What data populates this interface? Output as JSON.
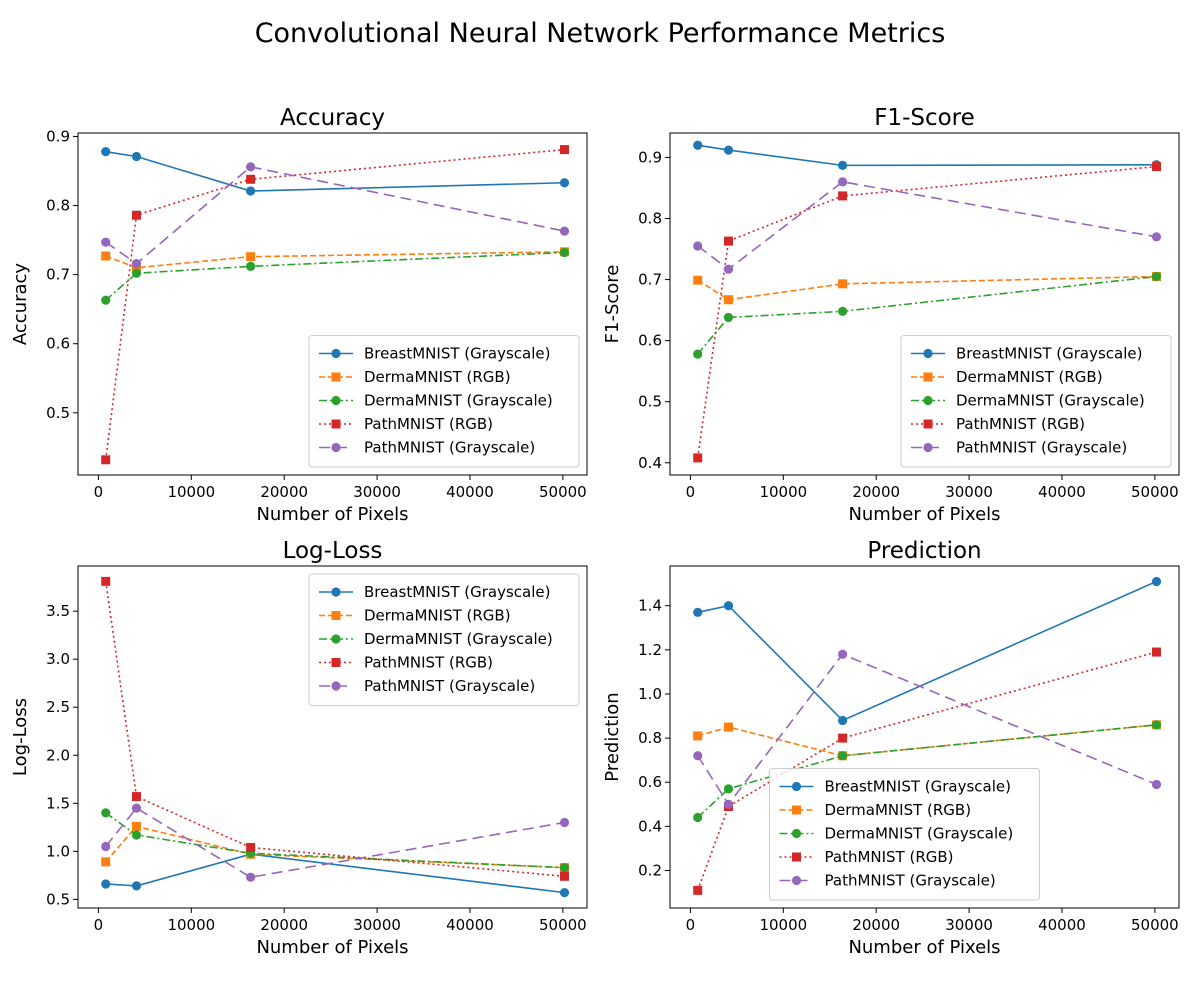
{
  "figure": {
    "title": "Convolutional Neural Network Performance Metrics"
  },
  "legend_entries": [
    "BreastMNIST (Grayscale)",
    "DermaMNIST (RGB)",
    "DermaMNIST (Grayscale)",
    "PathMNIST (RGB)",
    "PathMNIST (Grayscale)"
  ],
  "series_styles": [
    {
      "color": "#1f77b4",
      "dash": "solid",
      "marker": "circle"
    },
    {
      "color": "#ff7f0e",
      "dash": "dashed",
      "marker": "square"
    },
    {
      "color": "#2ca02c",
      "dash": "dashdot",
      "marker": "circle"
    },
    {
      "color": "#d62728",
      "dash": "dotted",
      "marker": "square"
    },
    {
      "color": "#9467bd",
      "dash": "longdash",
      "marker": "circle"
    }
  ],
  "chart_data": [
    {
      "type": "line",
      "title": "Accuracy",
      "xlabel": "Number of Pixels",
      "ylabel": "Accuracy",
      "x": [
        784,
        4096,
        16384,
        50176
      ],
      "xlim": [
        -2200,
        52600
      ],
      "ylim": [
        0.41,
        0.905
      ],
      "xticks": [
        0,
        10000,
        20000,
        30000,
        40000,
        50000
      ],
      "yticks": [
        0.5,
        0.6,
        0.7,
        0.8,
        0.9
      ],
      "ytick_decimals": 1,
      "legend": "lower-right",
      "series": [
        {
          "name": "BreastMNIST (Grayscale)",
          "values": [
            0.878,
            0.871,
            0.821,
            0.833
          ]
        },
        {
          "name": "DermaMNIST (RGB)",
          "values": [
            0.727,
            0.71,
            0.726,
            0.733
          ]
        },
        {
          "name": "DermaMNIST (Grayscale)",
          "values": [
            0.663,
            0.702,
            0.712,
            0.732
          ]
        },
        {
          "name": "PathMNIST (RGB)",
          "values": [
            0.432,
            0.786,
            0.838,
            0.881
          ]
        },
        {
          "name": "PathMNIST (Grayscale)",
          "values": [
            0.747,
            0.716,
            0.856,
            0.763
          ]
        }
      ]
    },
    {
      "type": "line",
      "title": "F1-Score",
      "xlabel": "Number of Pixels",
      "ylabel": "F1-Score",
      "x": [
        784,
        4096,
        16384,
        50176
      ],
      "xlim": [
        -2200,
        52600
      ],
      "ylim": [
        0.38,
        0.94
      ],
      "xticks": [
        0,
        10000,
        20000,
        30000,
        40000,
        50000
      ],
      "yticks": [
        0.4,
        0.5,
        0.6,
        0.7,
        0.8,
        0.9
      ],
      "ytick_decimals": 1,
      "legend": "lower-right",
      "series": [
        {
          "name": "BreastMNIST (Grayscale)",
          "values": [
            0.92,
            0.912,
            0.887,
            0.888
          ]
        },
        {
          "name": "DermaMNIST (RGB)",
          "values": [
            0.699,
            0.667,
            0.693,
            0.705
          ]
        },
        {
          "name": "DermaMNIST (Grayscale)",
          "values": [
            0.578,
            0.638,
            0.648,
            0.705
          ]
        },
        {
          "name": "PathMNIST (RGB)",
          "values": [
            0.408,
            0.763,
            0.837,
            0.885
          ]
        },
        {
          "name": "PathMNIST (Grayscale)",
          "values": [
            0.755,
            0.717,
            0.86,
            0.77
          ]
        }
      ]
    },
    {
      "type": "line",
      "title": "Log-Loss",
      "xlabel": "Number of Pixels",
      "ylabel": "Log-Loss",
      "x": [
        784,
        4096,
        16384,
        50176
      ],
      "xlim": [
        -2200,
        52600
      ],
      "ylim": [
        0.41,
        3.97
      ],
      "xticks": [
        0,
        10000,
        20000,
        30000,
        40000,
        50000
      ],
      "yticks": [
        0.5,
        1.0,
        1.5,
        2.0,
        2.5,
        3.0,
        3.5
      ],
      "ytick_decimals": 1,
      "legend": "upper-right",
      "series": [
        {
          "name": "BreastMNIST (Grayscale)",
          "values": [
            0.66,
            0.64,
            0.97,
            0.57
          ]
        },
        {
          "name": "DermaMNIST (RGB)",
          "values": [
            0.89,
            1.26,
            0.97,
            0.83
          ]
        },
        {
          "name": "DermaMNIST (Grayscale)",
          "values": [
            1.4,
            1.17,
            0.98,
            0.83
          ]
        },
        {
          "name": "PathMNIST (RGB)",
          "values": [
            3.81,
            1.57,
            1.04,
            0.74
          ]
        },
        {
          "name": "PathMNIST (Grayscale)",
          "values": [
            1.05,
            1.45,
            0.73,
            1.3
          ]
        }
      ]
    },
    {
      "type": "line",
      "title": "Prediction",
      "xlabel": "Number of Pixels",
      "ylabel": "Prediction",
      "x": [
        784,
        4096,
        16384,
        50176
      ],
      "xlim": [
        -2200,
        52600
      ],
      "ylim": [
        0.03,
        1.58
      ],
      "xticks": [
        0,
        10000,
        20000,
        30000,
        40000,
        50000
      ],
      "yticks": [
        0.2,
        0.4,
        0.6,
        0.8,
        1.0,
        1.2,
        1.4
      ],
      "ytick_decimals": 1,
      "legend": "lower-center",
      "series": [
        {
          "name": "BreastMNIST (Grayscale)",
          "values": [
            1.37,
            1.4,
            0.88,
            1.51
          ]
        },
        {
          "name": "DermaMNIST (RGB)",
          "values": [
            0.81,
            0.85,
            0.72,
            0.86
          ]
        },
        {
          "name": "DermaMNIST (Grayscale)",
          "values": [
            0.44,
            0.57,
            0.72,
            0.86
          ]
        },
        {
          "name": "PathMNIST (RGB)",
          "values": [
            0.11,
            0.49,
            0.8,
            1.19
          ]
        },
        {
          "name": "PathMNIST (Grayscale)",
          "values": [
            0.72,
            0.5,
            1.18,
            0.59
          ]
        }
      ]
    }
  ]
}
